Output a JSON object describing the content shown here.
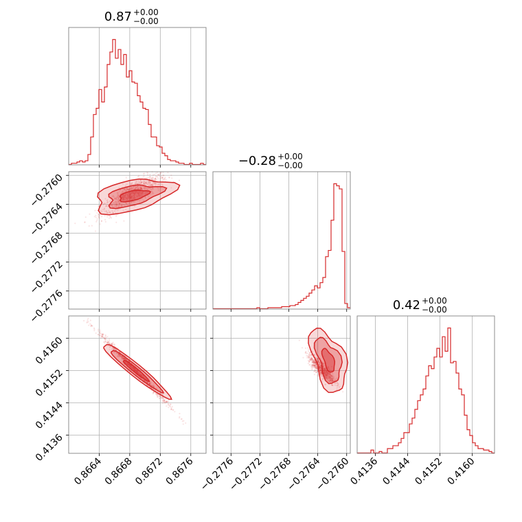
{
  "chart_data": {
    "type": "corner",
    "color": "#d62728",
    "grid": true,
    "titles": [
      {
        "main": "0.87",
        "sup": "+0.00",
        "sub": "−0.00"
      },
      {
        "main": "−0.28",
        "sup": "+0.00",
        "sub": "−0.00"
      },
      {
        "main": "0.42",
        "sup": "+0.00",
        "sub": "−0.00"
      }
    ],
    "params": [
      {
        "range": [
          0.866,
          0.8678
        ],
        "ticks": [
          0.8664,
          0.8668,
          0.8672,
          0.8676
        ],
        "tick_labels": [
          "0.8664",
          "0.8668",
          "0.8672",
          "0.8676"
        ]
      },
      {
        "range": [
          -0.27785,
          -0.27595
        ],
        "ticks": [
          -0.2776,
          -0.2772,
          -0.2768,
          -0.2764,
          -0.276
        ],
        "tick_labels": [
          "−0.2776",
          "−0.2772",
          "−0.2768",
          "−0.2764",
          "−0.2760"
        ]
      },
      {
        "range": [
          0.41315,
          0.41655
        ],
        "ticks": [
          0.4136,
          0.4144,
          0.4152,
          0.416
        ],
        "tick_labels": [
          "0.4136",
          "0.4144",
          "0.4152",
          "0.4160"
        ]
      }
    ],
    "histograms": [
      {
        "bins": 50,
        "counts": [
          0,
          1,
          1,
          2,
          3,
          2,
          3,
          8,
          22,
          40,
          45,
          60,
          50,
          62,
          80,
          90,
          100,
          85,
          92,
          80,
          88,
          70,
          75,
          66,
          65,
          55,
          50,
          45,
          44,
          32,
          22,
          22,
          15,
          14,
          9,
          7,
          4,
          3,
          3,
          2,
          1,
          1,
          0,
          0,
          1,
          0,
          0,
          0,
          1,
          0
        ]
      },
      {
        "bins": 50,
        "counts": [
          0,
          0,
          0,
          0,
          0,
          0,
          0,
          0,
          0,
          0,
          0,
          0,
          0,
          0,
          0,
          0,
          1,
          0,
          0,
          0,
          1,
          1,
          1,
          1,
          1,
          2,
          2,
          2,
          3,
          3,
          4,
          6,
          8,
          10,
          12,
          15,
          18,
          22,
          20,
          25,
          30,
          50,
          56,
          85,
          120,
          118,
          115,
          55,
          5,
          1
        ]
      },
      {
        "bins": 50,
        "counts": [
          0,
          0,
          0,
          0,
          0,
          2,
          0,
          0,
          1,
          0,
          0,
          3,
          3,
          5,
          5,
          7,
          10,
          14,
          14,
          20,
          24,
          30,
          36,
          40,
          44,
          53,
          60,
          58,
          66,
          72,
          66,
          80,
          70,
          86,
          62,
          63,
          55,
          44,
          40,
          26,
          16,
          12,
          7,
          5,
          3,
          3,
          2,
          2,
          1,
          0
        ]
      }
    ],
    "covariance_hint": {
      "corr_01": 0.45,
      "corr_02": -0.98,
      "corr_12": -0.55
    }
  }
}
